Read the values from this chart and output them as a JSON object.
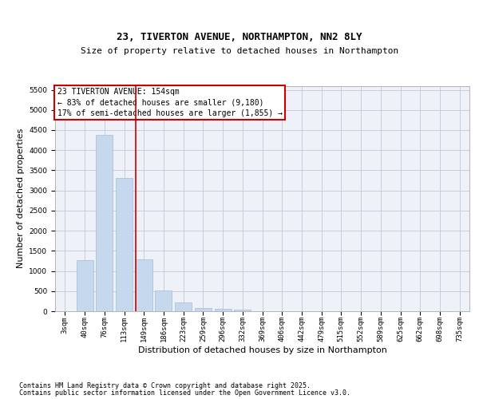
{
  "title": "23, TIVERTON AVENUE, NORTHAMPTON, NN2 8LY",
  "subtitle": "Size of property relative to detached houses in Northampton",
  "xlabel": "Distribution of detached houses by size in Northampton",
  "ylabel": "Number of detached properties",
  "categories": [
    "3sqm",
    "40sqm",
    "76sqm",
    "113sqm",
    "149sqm",
    "186sqm",
    "223sqm",
    "259sqm",
    "296sqm",
    "332sqm",
    "369sqm",
    "406sqm",
    "442sqm",
    "479sqm",
    "515sqm",
    "552sqm",
    "589sqm",
    "625sqm",
    "662sqm",
    "698sqm",
    "735sqm"
  ],
  "values": [
    0,
    1260,
    4380,
    3310,
    1280,
    510,
    215,
    85,
    55,
    40,
    0,
    0,
    0,
    0,
    0,
    0,
    0,
    0,
    0,
    0,
    0
  ],
  "bar_color": "#c5d8ed",
  "bar_edgecolor": "#a0bcd8",
  "vline_pos": 3.6,
  "vline_color": "#cc0000",
  "annotation_box_text": "23 TIVERTON AVENUE: 154sqm\n← 83% of detached houses are smaller (9,180)\n17% of semi-detached houses are larger (1,855) →",
  "annotation_box_color": "#cc0000",
  "ylim": [
    0,
    5600
  ],
  "yticks": [
    0,
    500,
    1000,
    1500,
    2000,
    2500,
    3000,
    3500,
    4000,
    4500,
    5000,
    5500
  ],
  "grid_color": "#c0c8d8",
  "bg_color": "#eef2f8",
  "footer_line1": "Contains HM Land Registry data © Crown copyright and database right 2025.",
  "footer_line2": "Contains public sector information licensed under the Open Government Licence v3.0.",
  "title_fontsize": 9,
  "subtitle_fontsize": 8,
  "axis_label_fontsize": 8,
  "tick_fontsize": 6.5,
  "annotation_fontsize": 7,
  "footer_fontsize": 6
}
